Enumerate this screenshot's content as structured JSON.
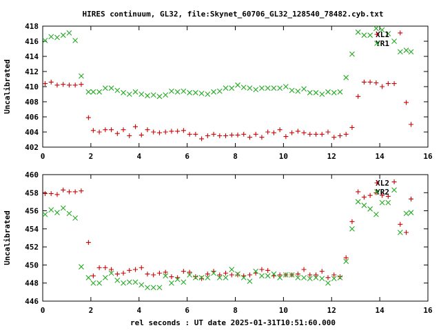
{
  "title": "HIRES continuum, GL32, file:Skynet_60706_GL32_128540_78482.cyb.txt",
  "xlabel": "rel seconds : UT date 2025-01-31T10:51:60.000",
  "colors": {
    "red": "#cc0000",
    "green": "#22aa22",
    "axis": "#000000"
  },
  "chart_data": [
    {
      "type": "scatter",
      "xlim": [
        0,
        16
      ],
      "ylim": [
        402,
        418
      ],
      "xticks": [
        0,
        2,
        4,
        6,
        8,
        10,
        12,
        14,
        16
      ],
      "yticks": [
        402,
        404,
        406,
        408,
        410,
        412,
        414,
        416,
        418
      ],
      "ylabel": "Uncalibrated",
      "legend_position": "top-right",
      "series": [
        {
          "name": "XL1",
          "marker": "plus",
          "color": "#cc0000",
          "x": [
            0.1,
            0.35,
            0.6,
            0.85,
            1.1,
            1.35,
            1.6,
            1.9,
            2.1,
            2.35,
            2.6,
            2.85,
            3.1,
            3.35,
            3.6,
            3.85,
            4.1,
            4.35,
            4.6,
            4.85,
            5.1,
            5.35,
            5.6,
            5.85,
            6.1,
            6.35,
            6.6,
            6.85,
            7.1,
            7.35,
            7.6,
            7.85,
            8.1,
            8.35,
            8.6,
            8.85,
            9.1,
            9.35,
            9.6,
            9.85,
            10.1,
            10.35,
            10.6,
            10.85,
            11.1,
            11.35,
            11.6,
            11.85,
            12.1,
            12.35,
            12.6,
            12.85,
            13.1,
            13.35,
            13.6,
            13.85,
            14.1,
            14.35,
            14.6,
            14.85,
            15.1,
            15.3
          ],
          "y": [
            410.4,
            410.6,
            410.2,
            410.3,
            410.2,
            410.2,
            410.3,
            405.9,
            404.2,
            404.0,
            404.3,
            404.3,
            403.8,
            404.3,
            403.5,
            404.7,
            403.6,
            404.3,
            404.0,
            403.9,
            404.0,
            404.1,
            404.1,
            404.2,
            403.7,
            403.7,
            403.1,
            403.5,
            403.7,
            403.5,
            403.5,
            403.6,
            403.6,
            403.7,
            403.3,
            403.7,
            403.3,
            404.0,
            403.9,
            404.3,
            403.4,
            403.9,
            404.1,
            403.9,
            403.7,
            403.7,
            403.7,
            404.0,
            403.3,
            403.5,
            403.7,
            404.6,
            408.7,
            410.6,
            410.6,
            410.5,
            410.0,
            410.4,
            410.4,
            417.1,
            407.9,
            405.0
          ]
        },
        {
          "name": "YR1",
          "marker": "cross",
          "color": "#22aa22",
          "x": [
            0.1,
            0.35,
            0.6,
            0.85,
            1.1,
            1.35,
            1.6,
            1.9,
            2.1,
            2.35,
            2.6,
            2.85,
            3.1,
            3.35,
            3.6,
            3.85,
            4.1,
            4.35,
            4.6,
            4.85,
            5.1,
            5.35,
            5.6,
            5.85,
            6.1,
            6.35,
            6.6,
            6.85,
            7.1,
            7.35,
            7.6,
            7.85,
            8.1,
            8.35,
            8.6,
            8.85,
            9.1,
            9.35,
            9.6,
            9.85,
            10.1,
            10.35,
            10.6,
            10.85,
            11.1,
            11.35,
            11.6,
            11.85,
            12.1,
            12.35,
            12.6,
            12.85,
            13.1,
            13.35,
            13.6,
            13.85,
            14.1,
            14.35,
            14.6,
            14.85,
            15.1,
            15.3
          ],
          "y": [
            416.1,
            416.6,
            416.5,
            416.8,
            417.1,
            416.1,
            411.4,
            409.3,
            409.3,
            409.3,
            409.8,
            409.8,
            409.5,
            409.2,
            409.0,
            409.3,
            409.0,
            408.8,
            408.9,
            408.7,
            408.9,
            409.4,
            409.3,
            409.4,
            409.2,
            409.2,
            409.1,
            409.0,
            409.3,
            409.4,
            409.8,
            409.8,
            410.2,
            409.9,
            409.8,
            409.6,
            409.8,
            409.8,
            409.8,
            409.8,
            410.0,
            409.5,
            409.4,
            409.7,
            409.2,
            409.2,
            409.0,
            409.3,
            409.2,
            409.3,
            411.2,
            414.3,
            417.2,
            416.8,
            416.8,
            417.7,
            417.5,
            417.0,
            416.0,
            414.6,
            414.8,
            414.6
          ]
        }
      ]
    },
    {
      "type": "scatter",
      "xlim": [
        0,
        16
      ],
      "ylim": [
        446,
        460
      ],
      "xticks": [
        0,
        2,
        4,
        6,
        8,
        10,
        12,
        14,
        16
      ],
      "yticks": [
        446,
        448,
        450,
        452,
        454,
        456,
        458,
        460
      ],
      "ylabel": "Uncalibrated",
      "legend_position": "top-right",
      "series": [
        {
          "name": "XL2",
          "marker": "plus",
          "color": "#cc0000",
          "x": [
            0.1,
            0.35,
            0.6,
            0.85,
            1.1,
            1.35,
            1.6,
            1.9,
            2.1,
            2.35,
            2.6,
            2.85,
            3.1,
            3.35,
            3.6,
            3.85,
            4.1,
            4.35,
            4.6,
            4.85,
            5.1,
            5.35,
            5.6,
            5.85,
            6.1,
            6.35,
            6.6,
            6.85,
            7.1,
            7.35,
            7.6,
            7.85,
            8.1,
            8.35,
            8.6,
            8.85,
            9.1,
            9.35,
            9.6,
            9.85,
            10.1,
            10.35,
            10.6,
            10.85,
            11.1,
            11.35,
            11.6,
            11.85,
            12.1,
            12.35,
            12.6,
            12.85,
            13.1,
            13.35,
            13.6,
            13.85,
            14.1,
            14.35,
            14.6,
            14.85,
            15.1,
            15.3
          ],
          "y": [
            457.9,
            457.9,
            457.8,
            458.3,
            458.1,
            458.1,
            458.2,
            452.5,
            448.8,
            449.7,
            449.7,
            449.5,
            449.0,
            449.1,
            449.4,
            449.5,
            449.7,
            449.0,
            448.9,
            449.1,
            449.2,
            448.7,
            448.6,
            449.3,
            449.2,
            448.7,
            448.5,
            449.0,
            449.3,
            448.9,
            449.1,
            448.9,
            448.9,
            448.8,
            448.9,
            449.1,
            449.5,
            449.4,
            448.8,
            448.9,
            448.9,
            448.9,
            449.0,
            449.5,
            448.9,
            448.9,
            449.3,
            448.6,
            448.9,
            448.7,
            450.8,
            454.8,
            458.1,
            457.5,
            457.7,
            458.0,
            457.7,
            457.6,
            459.2,
            454.5,
            453.6,
            457.3
          ]
        },
        {
          "name": "YR2",
          "marker": "cross",
          "color": "#22aa22",
          "x": [
            0.1,
            0.35,
            0.6,
            0.85,
            1.1,
            1.35,
            1.6,
            1.9,
            2.1,
            2.35,
            2.6,
            2.85,
            3.1,
            3.35,
            3.6,
            3.85,
            4.1,
            4.35,
            4.6,
            4.85,
            5.1,
            5.35,
            5.6,
            5.85,
            6.1,
            6.35,
            6.6,
            6.85,
            7.1,
            7.35,
            7.6,
            7.85,
            8.1,
            8.35,
            8.6,
            8.85,
            9.1,
            9.35,
            9.6,
            9.85,
            10.1,
            10.35,
            10.6,
            10.85,
            11.1,
            11.35,
            11.6,
            11.85,
            12.1,
            12.35,
            12.6,
            12.85,
            13.1,
            13.35,
            13.6,
            13.85,
            14.1,
            14.35,
            14.6,
            14.85,
            15.1,
            15.3
          ],
          "y": [
            455.6,
            456.1,
            455.8,
            456.3,
            455.7,
            455.2,
            449.8,
            448.6,
            448.0,
            448.0,
            448.6,
            449.1,
            448.3,
            448.0,
            448.1,
            448.1,
            447.8,
            447.5,
            447.5,
            447.5,
            448.8,
            448.0,
            448.4,
            448.1,
            448.9,
            448.6,
            448.6,
            448.6,
            449.1,
            448.6,
            448.6,
            449.5,
            449.0,
            448.6,
            448.2,
            449.3,
            448.8,
            448.8,
            449.0,
            448.6,
            448.9,
            448.9,
            448.6,
            448.6,
            448.5,
            448.6,
            448.5,
            448.0,
            448.5,
            448.6,
            450.4,
            454.0,
            457.0,
            456.6,
            456.2,
            455.6,
            456.9,
            456.9,
            458.3,
            453.6,
            455.7,
            455.8
          ]
        }
      ]
    }
  ]
}
